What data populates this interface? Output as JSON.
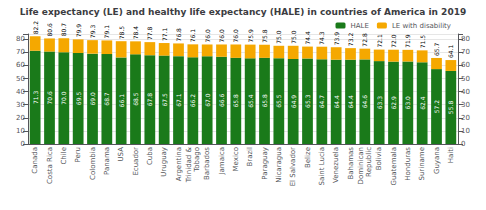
{
  "chart_data": {
    "type": "bar",
    "title": "Life expectancy (LE) and healthy life expectancy (HALE) in countries of America in 2019",
    "categories": [
      "Canada",
      "Costa Rica",
      "Chile",
      "Peru",
      "Colombia",
      "Panama",
      "USA",
      "Ecuador",
      "Cuba",
      "Uruguay",
      "Argentina",
      "Trinidad &\nTobago",
      "Barbados",
      "Jamaica",
      "Mexico",
      "Brazil",
      "Paraguay",
      "Nicaragua",
      "El Salvador",
      "Belize",
      "Saint Lucia",
      "Venezuela",
      "Bahamas",
      "Dominican\nRepublic",
      "Bolivia",
      "Guatemala",
      "Honduras",
      "Suriname",
      "Guyana",
      "Haiti"
    ],
    "stacked": true,
    "series": [
      {
        "name": "HALE",
        "color": "#1a7a1a",
        "values": [
          71.3,
          70.6,
          70.0,
          69.5,
          69.0,
          68.7,
          66.1,
          68.5,
          67.8,
          67.5,
          67.1,
          66.2,
          67.0,
          66.6,
          65.8,
          65.4,
          65.8,
          65.5,
          64.9,
          65.3,
          64.7,
          64.4,
          64.4,
          64.6,
          63.3,
          62.9,
          63.0,
          62.4,
          57.2,
          55.8
        ],
        "value_labels": [
          "71.3",
          "70.6",
          "70.0",
          "69.5",
          "69.0",
          "68.7",
          "66.1",
          "68.5",
          "67.8",
          "67.5",
          "67.1",
          "66.2",
          "67.0",
          "66.6",
          "65.8",
          "65.4",
          "65.8",
          "65.5",
          "64.9",
          "65.3",
          "64.7",
          "64.4",
          "64.4",
          "64.6",
          "63.3",
          "62.9",
          "63.0",
          "62.4",
          "57.2",
          "55.8"
        ]
      },
      {
        "name": "LE with disability",
        "color": "#f5a800",
        "values": [
          10.9,
          10.0,
          10.7,
          10.4,
          10.3,
          10.4,
          12.4,
          9.9,
          10.0,
          9.6,
          9.7,
          9.9,
          9.0,
          9.4,
          10.2,
          10.5,
          10.0,
          9.5,
          10.1,
          9.1,
          9.6,
          9.5,
          8.8,
          8.2,
          8.8,
          9.1,
          8.9,
          9.1,
          8.5,
          8.3
        ]
      }
    ],
    "totals": [
      82.2,
      80.6,
      80.7,
      79.9,
      79.3,
      79.1,
      78.5,
      78.4,
      77.8,
      77.1,
      76.8,
      76.1,
      76.0,
      76.0,
      76.0,
      75.9,
      75.8,
      75.0,
      75.0,
      74.4,
      74.3,
      73.9,
      73.2,
      72.8,
      72.1,
      72.0,
      71.9,
      71.5,
      65.7,
      64.1
    ],
    "total_labels": [
      "82.2",
      "80.6",
      "80.7",
      "79.9",
      "79.3",
      "79.1",
      "78.5",
      "78.4",
      "77.8",
      "77.1",
      "76.8",
      "76.1",
      "76.0",
      "76.0",
      "76.0",
      "75.9",
      "75.8",
      "75.0",
      "75.0",
      "74.4",
      "74.3",
      "73.9",
      "73.2",
      "72.8",
      "72.1",
      "72.0",
      "71.9",
      "71.5",
      "65.7",
      "64.1"
    ],
    "data_labels": true,
    "ylim": [
      0,
      84
    ],
    "yticks": [
      0,
      10,
      20,
      30,
      40,
      50,
      60,
      70,
      80
    ],
    "y2lim": [
      0,
      84
    ],
    "y2ticks": [
      0,
      10,
      20,
      30,
      40,
      50,
      60,
      70,
      80
    ],
    "grid": true,
    "legend": "upper right"
  }
}
